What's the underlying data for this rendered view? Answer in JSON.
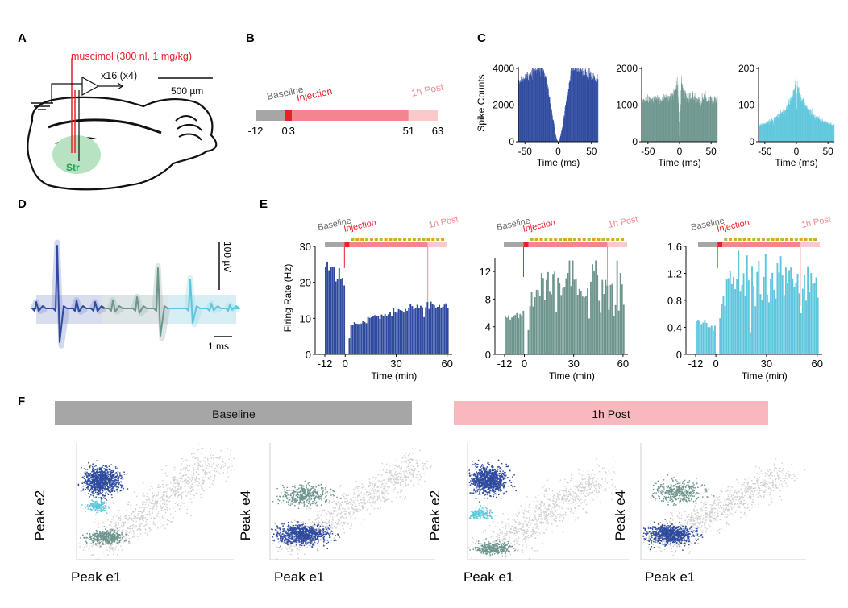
{
  "panel_letters": [
    "A",
    "B",
    "C",
    "D",
    "E",
    "F"
  ],
  "colors": {
    "unit1": "#2e4a9e",
    "unit2": "#6d958e",
    "unit3": "#5ec6dc",
    "baseline": "#a6a6a6",
    "injection": "#e8202a",
    "post": "#f7a3aa",
    "post_light": "#fbc8cb",
    "muscimol": "#e8202a",
    "str_fill": "#b7e3c2",
    "str_text": "#1aa64a",
    "cloud": "#cfcfcf",
    "orange": "#e6a21a",
    "olive": "#a6c23a"
  },
  "panelA": {
    "muscimol_label": "muscimol (300 nl, 1 mg/kg)",
    "channels_label": "x16 (x4)",
    "scale_label": "500 µm",
    "region_label": "Str"
  },
  "panelB": {
    "baseline_label": "Baseline",
    "injection_label": "Injection",
    "post_label": "1h Post",
    "ticks": [
      "-12",
      "0",
      "3",
      "51",
      "63"
    ]
  },
  "chart_data": [
    {
      "panel": "C",
      "type": "bar",
      "title": "",
      "xlabel": "Time (ms)",
      "ylabel": "Spike Counts",
      "xlim": [
        -60,
        60
      ],
      "ylim": [
        0,
        4000
      ],
      "x_ticks": [
        "-50",
        "0",
        "50"
      ],
      "y_ticks": [
        "0",
        "2000",
        "4000"
      ],
      "series": [
        {
          "values": [
            [
              -60,
              3300
            ],
            [
              -50,
              3550
            ],
            [
              -40,
              3800
            ],
            [
              -30,
              3950
            ],
            [
              -22,
              4000
            ],
            [
              -18,
              3500
            ],
            [
              -12,
              2200
            ],
            [
              -8,
              1200
            ],
            [
              -4,
              400
            ],
            [
              -2,
              100
            ],
            [
              0,
              0
            ],
            [
              2,
              100
            ],
            [
              4,
              400
            ],
            [
              8,
              1200
            ],
            [
              12,
              2200
            ],
            [
              18,
              3500
            ],
            [
              22,
              4000
            ],
            [
              30,
              3950
            ],
            [
              40,
              3800
            ],
            [
              50,
              3550
            ],
            [
              60,
              3300
            ]
          ]
        }
      ]
    },
    {
      "panel": "C",
      "type": "bar",
      "title": "",
      "xlabel": "Time (ms)",
      "ylabel": "",
      "xlim": [
        -60,
        60
      ],
      "ylim": [
        0,
        2000
      ],
      "x_ticks": [
        "-50",
        "0",
        "50"
      ],
      "y_ticks": [
        "0",
        "1000",
        "2000"
      ],
      "series": [
        {
          "values": [
            [
              -60,
              1150
            ],
            [
              -40,
              1180
            ],
            [
              -20,
              1200
            ],
            [
              -12,
              1230
            ],
            [
              -8,
              1380
            ],
            [
              -5,
              1500
            ],
            [
              -3,
              1650
            ],
            [
              -1,
              700
            ],
            [
              0,
              0
            ],
            [
              1,
              700
            ],
            [
              3,
              1650
            ],
            [
              5,
              1500
            ],
            [
              8,
              1380
            ],
            [
              12,
              1230
            ],
            [
              20,
              1200
            ],
            [
              40,
              1180
            ],
            [
              60,
              1150
            ]
          ]
        }
      ]
    },
    {
      "panel": "C",
      "type": "bar",
      "title": "",
      "xlabel": "Time (ms)",
      "ylabel": "",
      "xlim": [
        -60,
        60
      ],
      "ylim": [
        0,
        200
      ],
      "x_ticks": [
        "-50",
        "0",
        "50"
      ],
      "y_ticks": [
        "0",
        "100",
        "200"
      ],
      "series": [
        {
          "values": [
            [
              -60,
              45
            ],
            [
              -50,
              50
            ],
            [
              -40,
              58
            ],
            [
              -30,
              70
            ],
            [
              -20,
              85
            ],
            [
              -12,
              105
            ],
            [
              -6,
              125
            ],
            [
              -3,
              145
            ],
            [
              -1,
              165
            ],
            [
              0,
              60
            ],
            [
              1,
              165
            ],
            [
              3,
              145
            ],
            [
              6,
              125
            ],
            [
              12,
              105
            ],
            [
              20,
              85
            ],
            [
              30,
              70
            ],
            [
              40,
              58
            ],
            [
              50,
              50
            ],
            [
              60,
              45
            ]
          ]
        }
      ]
    },
    {
      "panel": "E",
      "type": "bar",
      "title": "",
      "xlabel": "Time (min)",
      "ylabel": "Firing Rate (Hz)",
      "xlim": [
        -12,
        63
      ],
      "ylim": [
        0,
        30
      ],
      "x_ticks": [
        "-12",
        "0",
        "30",
        "60"
      ],
      "y_ticks": [
        "0",
        "10",
        "20",
        "30"
      ],
      "timeline_labels": [
        "Baseline",
        "Injection",
        "1h Post"
      ],
      "series": [
        {
          "values": [
            [
              -12,
              24
            ],
            [
              -6,
              23
            ],
            [
              -1,
              20
            ],
            [
              1,
              0
            ],
            [
              3,
              8
            ],
            [
              10,
              9
            ],
            [
              20,
              11
            ],
            [
              30,
              12
            ],
            [
              40,
              13
            ],
            [
              50,
              13.5
            ],
            [
              60,
              13.5
            ]
          ]
        }
      ]
    },
    {
      "panel": "E",
      "type": "bar",
      "title": "",
      "xlabel": "Time (min)",
      "ylabel": "",
      "xlim": [
        -12,
        63
      ],
      "ylim": [
        0,
        14
      ],
      "x_ticks": [
        "-12",
        "0",
        "30",
        "60"
      ],
      "y_ticks": [
        "0",
        "4",
        "8",
        "12"
      ],
      "timeline_labels": [
        "Baseline",
        "Injection",
        "1h Post"
      ],
      "series": [
        {
          "values": [
            [
              -12,
              5
            ],
            [
              -6,
              5.5
            ],
            [
              -1,
              6
            ],
            [
              1,
              0
            ],
            [
              3,
              8
            ],
            [
              10,
              9.5
            ],
            [
              20,
              10
            ],
            [
              30,
              10
            ],
            [
              40,
              10.5
            ],
            [
              50,
              10
            ],
            [
              60,
              10
            ]
          ]
        }
      ]
    },
    {
      "panel": "E",
      "type": "bar",
      "title": "",
      "xlabel": "Time (min)",
      "ylabel": "",
      "xlim": [
        -12,
        63
      ],
      "ylim": [
        0,
        1.6
      ],
      "x_ticks": [
        "-12",
        "0",
        "30",
        "60"
      ],
      "y_ticks": [
        "0",
        "0.4",
        "0.8",
        "1.2",
        "1.6"
      ],
      "timeline_labels": [
        "Baseline",
        "Injection",
        "1h Post"
      ],
      "series": [
        {
          "values": [
            [
              -12,
              0.5
            ],
            [
              -6,
              0.45
            ],
            [
              -1,
              0.4
            ],
            [
              1,
              0
            ],
            [
              3,
              0.9
            ],
            [
              10,
              1.05
            ],
            [
              20,
              1.1
            ],
            [
              30,
              1.1
            ],
            [
              40,
              1.15
            ],
            [
              50,
              1.15
            ],
            [
              60,
              1.0
            ]
          ]
        }
      ]
    },
    {
      "panel": "F",
      "type": "scatter",
      "section_labels": [
        "Baseline",
        "1h Post"
      ],
      "plots": [
        {
          "xlabel": "Peak e1",
          "ylabel": "Peak e2"
        },
        {
          "xlabel": "Peak e1",
          "ylabel": "Peak e4"
        },
        {
          "xlabel": "Peak e1",
          "ylabel": "Peak e2"
        },
        {
          "xlabel": "Peak e1",
          "ylabel": "Peak e4"
        }
      ]
    }
  ],
  "panelD": {
    "scale_v": "100 µV",
    "scale_t": "1 ms"
  }
}
